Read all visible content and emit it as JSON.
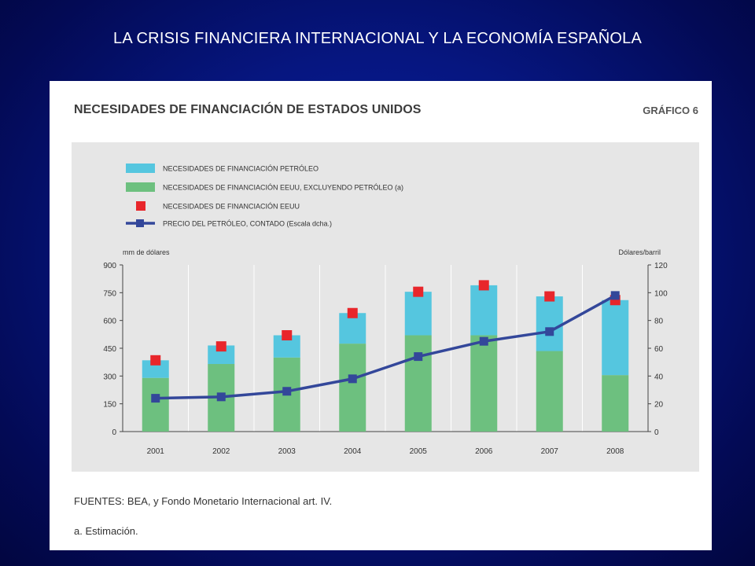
{
  "slide": {
    "title": "LA CRISIS FINANCIERA INTERNACIONAL  Y LA ECONOMÍA ESPAÑOLA"
  },
  "figure": {
    "title": "NECESIDADES DE FINANCIACIÓN DE ESTADOS UNIDOS",
    "id_label": "GRÁFICO 6",
    "source": "FUENTES: BEA, y Fondo Monetario Internacional art. IV.",
    "note": "a. Estimación."
  },
  "chart_data": {
    "type": "bar",
    "stacked": true,
    "categories": [
      "2001",
      "2002",
      "2003",
      "2004",
      "2005",
      "2006",
      "2007",
      "2008"
    ],
    "series": [
      {
        "name": "NECESIDADES DE FINANCIACIÓN EEUU, EXCLUYENDO PETRÓLEO (a)",
        "kind": "bar",
        "axis": "left",
        "color": "#6dc07f",
        "values": [
          290,
          365,
          400,
          475,
          520,
          520,
          435,
          305
        ]
      },
      {
        "name": "NECESIDADES DE FINANCIACIÓN PETRÓLEO",
        "kind": "bar",
        "axis": "left",
        "color": "#55c6df",
        "values": [
          95,
          100,
          120,
          165,
          235,
          270,
          295,
          405
        ]
      },
      {
        "name": "NECESIDADES DE FINANCIACIÓN EEUU",
        "kind": "marker",
        "axis": "left",
        "color": "#e8262b",
        "values": [
          385,
          460,
          520,
          640,
          755,
          790,
          730,
          710
        ]
      },
      {
        "name": "PRECIO DEL PETRÓLEO, CONTADO (Escala dcha.)",
        "kind": "line",
        "axis": "right",
        "color": "#33479a",
        "values": [
          24,
          25,
          29,
          38,
          54,
          65,
          72,
          98
        ]
      }
    ],
    "legend_order": [
      1,
      0,
      2,
      3
    ],
    "ylabel_left": "mm de dólares",
    "ylabel_right": "Dólares/barril",
    "ylim_left": [
      0,
      900
    ],
    "yticks_left": [
      0,
      150,
      300,
      450,
      600,
      750,
      900
    ],
    "ylim_right": [
      0,
      120
    ],
    "yticks_right": [
      0,
      20,
      40,
      60,
      80,
      100,
      120
    ],
    "grid": "vertical",
    "legend_position": "top-left"
  }
}
